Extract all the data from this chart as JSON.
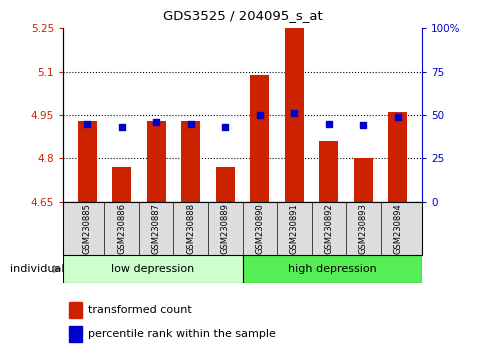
{
  "title": "GDS3525 / 204095_s_at",
  "samples": [
    "GSM230885",
    "GSM230886",
    "GSM230887",
    "GSM230888",
    "GSM230889",
    "GSM230890",
    "GSM230891",
    "GSM230892",
    "GSM230893",
    "GSM230894"
  ],
  "red_values": [
    4.93,
    4.77,
    4.93,
    4.93,
    4.77,
    5.09,
    5.25,
    4.86,
    4.8,
    4.96
  ],
  "blue_values_pct": [
    45,
    43,
    46,
    45,
    43,
    50,
    51,
    45,
    44,
    49
  ],
  "ymin": 4.65,
  "ymax": 5.25,
  "yticks": [
    4.65,
    4.8,
    4.95,
    5.1,
    5.25
  ],
  "ytick_labels": [
    "4.65",
    "4.8",
    "4.95",
    "5.1",
    "5.25"
  ],
  "right_yticks": [
    0,
    25,
    50,
    75,
    100
  ],
  "right_ytick_labels": [
    "0",
    "25",
    "50",
    "75",
    "100%"
  ],
  "dotted_lines": [
    4.8,
    4.95,
    5.1
  ],
  "bar_color": "#cc2200",
  "blue_color": "#0000cc",
  "group_colors": [
    "#ccffcc",
    "#55ee55"
  ],
  "group_names": [
    "low depression",
    "high depression"
  ],
  "legend_bar_label": "transformed count",
  "legend_dot_label": "percentile rank within the sample",
  "individual_label": "individual",
  "bar_width": 0.55,
  "figsize": [
    4.85,
    3.54
  ],
  "dpi": 100
}
